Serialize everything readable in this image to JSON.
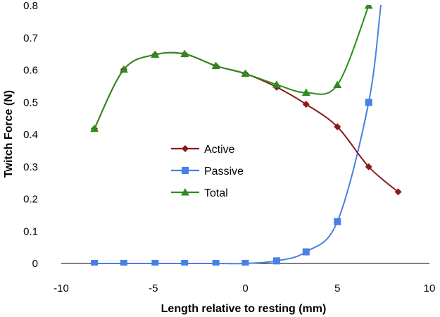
{
  "chart_data": {
    "type": "line",
    "title": "",
    "xlabel": "Length relative to resting (mm)",
    "ylabel": "Twitch Force (N)",
    "xlim": [
      -10,
      10
    ],
    "ylim": [
      0,
      0.8
    ],
    "xticks": [
      -10,
      -5,
      0,
      5,
      10
    ],
    "yticks": [
      0,
      0.1,
      0.2,
      0.3,
      0.4,
      0.5,
      0.6,
      0.7,
      0.8
    ],
    "grid": false,
    "legend_position": "center-left",
    "series": [
      {
        "name": "Active",
        "color": "#8b1a1a",
        "marker": "diamond",
        "x": [
          -8.2,
          -6.6,
          -4.9,
          -3.3,
          -1.6,
          0,
          1.7,
          3.3,
          5.0,
          6.7,
          8.3
        ],
        "y": [
          0.418,
          0.602,
          0.648,
          0.65,
          0.613,
          0.589,
          0.547,
          0.494,
          0.424,
          0.3,
          0.222
        ]
      },
      {
        "name": "Passive",
        "color": "#4a7fe6",
        "marker": "square",
        "x": [
          -8.2,
          -6.6,
          -4.9,
          -3.3,
          -1.6,
          0,
          1.7,
          3.3,
          5.0,
          6.7
        ],
        "y": [
          0,
          0,
          0,
          0,
          0,
          0,
          0.008,
          0.036,
          0.13,
          0.5
        ]
      },
      {
        "name": "Total",
        "color": "#2e8b1f",
        "marker": "triangle",
        "x": [
          -8.2,
          -6.6,
          -4.9,
          -3.3,
          -1.6,
          0,
          1.7,
          3.3,
          5.0,
          6.7
        ],
        "y": [
          0.418,
          0.602,
          0.648,
          0.65,
          0.613,
          0.589,
          0.555,
          0.53,
          0.554,
          0.8
        ]
      }
    ]
  }
}
